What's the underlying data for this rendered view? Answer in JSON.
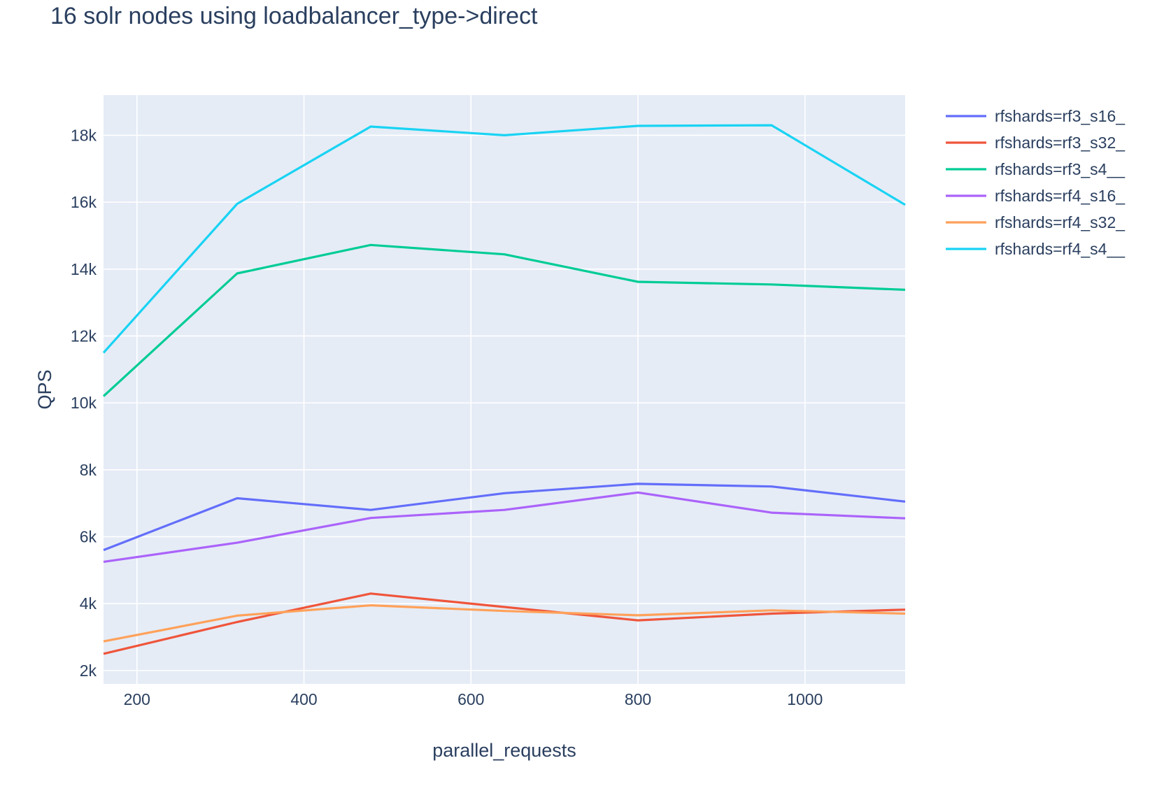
{
  "chart_data": {
    "type": "line",
    "title": "16 solr nodes using loadbalancer_type->direct",
    "xlabel": "parallel_requests",
    "ylabel": "QPS",
    "x": [
      160,
      320,
      480,
      640,
      800,
      960,
      1120
    ],
    "xlim": [
      160,
      1120
    ],
    "ylim": [
      1600,
      19200
    ],
    "xticks": [
      200,
      400,
      600,
      800,
      1000
    ],
    "xtick_labels": [
      "200",
      "400",
      "600",
      "800",
      "1000"
    ],
    "yticks": [
      2000,
      4000,
      6000,
      8000,
      10000,
      12000,
      14000,
      16000,
      18000
    ],
    "ytick_labels": [
      "2k",
      "4k",
      "6k",
      "8k",
      "10k",
      "12k",
      "14k",
      "16k",
      "18k"
    ],
    "grid": true,
    "legend_position": "top-right",
    "series": [
      {
        "name": "rfshards=rf3_s16_",
        "color": "#636efa",
        "values": [
          5600,
          7150,
          6800,
          7300,
          7580,
          7500,
          7050
        ]
      },
      {
        "name": "rfshards=rf3_s32_",
        "color": "#ef553b",
        "values": [
          2500,
          3450,
          4300,
          3900,
          3500,
          3700,
          3820
        ]
      },
      {
        "name": "rfshards=rf3_s4__",
        "color": "#00cc96",
        "values": [
          10200,
          13870,
          14720,
          14440,
          13620,
          13540,
          13380
        ]
      },
      {
        "name": "rfshards=rf4_s16_",
        "color": "#ab63fa",
        "values": [
          5250,
          5820,
          6560,
          6800,
          7320,
          6720,
          6550
        ]
      },
      {
        "name": "rfshards=rf4_s32_",
        "color": "#ffa15a",
        "values": [
          2870,
          3640,
          3950,
          3780,
          3650,
          3800,
          3700
        ]
      },
      {
        "name": "rfshards=rf4_s4__",
        "color": "#19d3f3",
        "values": [
          11500,
          15950,
          18260,
          18000,
          18280,
          18300,
          15920
        ]
      }
    ]
  }
}
